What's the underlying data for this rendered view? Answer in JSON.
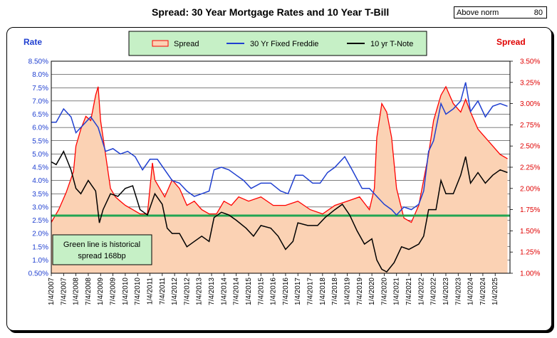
{
  "header": {
    "title": "Spread:  30 Year Mortgage Rates and 10 Year T-Bill",
    "norm_label": "Above norm",
    "norm_value": "80"
  },
  "note": {
    "line1": "Green line is historical",
    "line2": "spread 168bp"
  },
  "chart_data": {
    "type": "line",
    "title": "Spread:  30 Year Mortgage Rates and 10 Year T-Bill",
    "left_axis": {
      "label": "Rate",
      "min": 0.5,
      "max": 8.5,
      "ticks": [
        "0.50%",
        "1.0%",
        "1.5%",
        "2.0%",
        "2.5%",
        "3.0%",
        "3.5%",
        "4.0%",
        "4.5%",
        "5.0%",
        "5.5%",
        "6.0%",
        "6.5%",
        "7.0%",
        "7.5%",
        "8.0%",
        "8.50%"
      ]
    },
    "right_axis": {
      "label": "Spread",
      "min": 1.0,
      "max": 3.5,
      "ticks": [
        "1.00%",
        "1.25%",
        "1.50%",
        "1.75%",
        "2.00%",
        "2.25%",
        "2.50%",
        "2.75%",
        "3.00%",
        "3.25%",
        "3.50%"
      ]
    },
    "x_labels": [
      "1/4/2007",
      "7/4/2007",
      "1/4/2008",
      "7/4/2008",
      "1/4/2009",
      "7/4/2009",
      "1/4/2010",
      "7/4/2010",
      "1/4/2011",
      "7/4/2011",
      "1/4/2012",
      "7/4/2012",
      "1/4/2013",
      "7/4/2013",
      "1/4/2014",
      "7/4/2014",
      "1/4/2015",
      "7/4/2015",
      "1/4/2016",
      "7/4/2016",
      "1/4/2017",
      "7/4/2017",
      "1/4/2018",
      "7/4/2018",
      "1/4/2019",
      "7/4/2019",
      "1/4/2020",
      "7/4/2020",
      "1/4/2021",
      "7/4/2021",
      "1/4/2022",
      "7/4/2022",
      "1/4/2023",
      "7/4/2023",
      "1/4/2024",
      "7/4/2024",
      "1/4/2025"
    ],
    "x_range": [
      2007.0,
      2025.6
    ],
    "grid": true,
    "legend_position": "top",
    "historical_spread": 1.68,
    "series": [
      {
        "name": "Spread",
        "axis": "right",
        "color": "#ff0000",
        "fill": "#fbd2b4",
        "x": [
          2007.0,
          2007.3,
          2007.6,
          2007.9,
          2008.0,
          2008.2,
          2008.4,
          2008.6,
          2008.8,
          2008.9,
          2009.0,
          2009.2,
          2009.4,
          2009.6,
          2009.8,
          2010.0,
          2010.3,
          2010.6,
          2010.9,
          2011.1,
          2011.2,
          2011.4,
          2011.6,
          2011.9,
          2012.2,
          2012.5,
          2012.8,
          2013.1,
          2013.4,
          2013.7,
          2014.0,
          2014.3,
          2014.6,
          2015.0,
          2015.5,
          2016.0,
          2016.5,
          2017.0,
          2017.5,
          2018.0,
          2018.5,
          2019.0,
          2019.5,
          2019.9,
          2020.1,
          2020.2,
          2020.4,
          2020.6,
          2020.8,
          2021.0,
          2021.3,
          2021.6,
          2021.9,
          2022.1,
          2022.3,
          2022.5,
          2022.7,
          2022.8,
          2023.0,
          2023.3,
          2023.6,
          2023.8,
          2024.0,
          2024.3,
          2024.6,
          2024.9,
          2025.2,
          2025.5
        ],
        "y": [
          1.6,
          1.75,
          1.95,
          2.2,
          2.5,
          2.7,
          2.85,
          2.8,
          3.1,
          3.2,
          2.8,
          2.4,
          2.0,
          1.9,
          1.85,
          1.8,
          1.75,
          1.7,
          1.7,
          2.3,
          2.1,
          2.0,
          1.9,
          2.1,
          2.0,
          1.8,
          1.85,
          1.75,
          1.7,
          1.7,
          1.85,
          1.8,
          1.9,
          1.85,
          1.9,
          1.8,
          1.8,
          1.85,
          1.75,
          1.7,
          1.8,
          1.85,
          1.9,
          1.75,
          2.0,
          2.6,
          3.0,
          2.9,
          2.6,
          2.0,
          1.65,
          1.6,
          1.8,
          2.1,
          2.4,
          2.8,
          3.0,
          3.1,
          3.2,
          3.0,
          2.9,
          3.05,
          2.9,
          2.7,
          2.6,
          2.5,
          2.4,
          2.35
        ]
      },
      {
        "name": "30 Yr Fixed Freddie",
        "axis": "left",
        "color": "#1f3fd0",
        "x": [
          2007.0,
          2007.2,
          2007.5,
          2007.8,
          2008.0,
          2008.3,
          2008.6,
          2008.9,
          2009.2,
          2009.5,
          2009.8,
          2010.1,
          2010.4,
          2010.7,
          2011.0,
          2011.3,
          2011.6,
          2011.9,
          2012.2,
          2012.5,
          2012.8,
          2013.1,
          2013.4,
          2013.6,
          2013.9,
          2014.2,
          2014.5,
          2014.8,
          2015.1,
          2015.5,
          2015.9,
          2016.3,
          2016.6,
          2016.9,
          2017.2,
          2017.6,
          2017.9,
          2018.2,
          2018.5,
          2018.9,
          2019.2,
          2019.6,
          2019.9,
          2020.2,
          2020.5,
          2020.8,
          2021.0,
          2021.3,
          2021.6,
          2021.9,
          2022.1,
          2022.3,
          2022.5,
          2022.8,
          2023.0,
          2023.3,
          2023.6,
          2023.8,
          2024.0,
          2024.3,
          2024.6,
          2024.9,
          2025.2,
          2025.5
        ],
        "y": [
          6.2,
          6.2,
          6.7,
          6.4,
          5.8,
          6.1,
          6.4,
          6.0,
          5.1,
          5.2,
          5.0,
          5.1,
          4.9,
          4.4,
          4.8,
          4.8,
          4.4,
          4.0,
          3.9,
          3.6,
          3.4,
          3.5,
          3.6,
          4.4,
          4.5,
          4.4,
          4.2,
          4.0,
          3.7,
          3.9,
          3.9,
          3.6,
          3.5,
          4.2,
          4.2,
          3.9,
          3.9,
          4.3,
          4.5,
          4.9,
          4.4,
          3.7,
          3.7,
          3.4,
          3.1,
          2.9,
          2.7,
          3.0,
          2.9,
          3.1,
          3.6,
          5.1,
          5.5,
          6.9,
          6.5,
          6.7,
          7.0,
          7.7,
          6.6,
          7.0,
          6.4,
          6.8,
          6.9,
          6.8
        ]
      },
      {
        "name": "10 yr T-Note",
        "axis": "left",
        "color": "#000000",
        "x": [
          2007.0,
          2007.2,
          2007.5,
          2007.8,
          2008.0,
          2008.2,
          2008.5,
          2008.8,
          2008.95,
          2009.1,
          2009.4,
          2009.7,
          2010.0,
          2010.3,
          2010.6,
          2010.9,
          2011.2,
          2011.5,
          2011.7,
          2011.9,
          2012.2,
          2012.5,
          2012.8,
          2013.1,
          2013.4,
          2013.6,
          2013.9,
          2014.2,
          2014.5,
          2014.9,
          2015.2,
          2015.5,
          2015.9,
          2016.2,
          2016.5,
          2016.8,
          2017.0,
          2017.4,
          2017.8,
          2018.1,
          2018.5,
          2018.8,
          2019.1,
          2019.4,
          2019.7,
          2020.0,
          2020.2,
          2020.4,
          2020.6,
          2020.9,
          2021.2,
          2021.5,
          2021.9,
          2022.1,
          2022.3,
          2022.6,
          2022.8,
          2023.0,
          2023.3,
          2023.6,
          2023.8,
          2024.0,
          2024.3,
          2024.6,
          2024.9,
          2025.2,
          2025.5
        ],
        "y": [
          4.7,
          4.6,
          5.1,
          4.4,
          3.7,
          3.5,
          4.0,
          3.6,
          2.4,
          2.9,
          3.5,
          3.4,
          3.7,
          3.8,
          2.9,
          2.7,
          3.5,
          3.1,
          2.2,
          2.0,
          2.0,
          1.5,
          1.7,
          1.9,
          1.7,
          2.6,
          2.8,
          2.7,
          2.5,
          2.2,
          1.9,
          2.3,
          2.2,
          1.9,
          1.4,
          1.7,
          2.4,
          2.3,
          2.3,
          2.6,
          2.9,
          3.1,
          2.7,
          2.1,
          1.6,
          1.8,
          1.0,
          0.65,
          0.55,
          0.9,
          1.5,
          1.4,
          1.6,
          1.9,
          2.9,
          2.9,
          4.0,
          3.5,
          3.5,
          4.2,
          4.9,
          3.9,
          4.3,
          3.9,
          4.2,
          4.4,
          4.3
        ]
      }
    ]
  }
}
